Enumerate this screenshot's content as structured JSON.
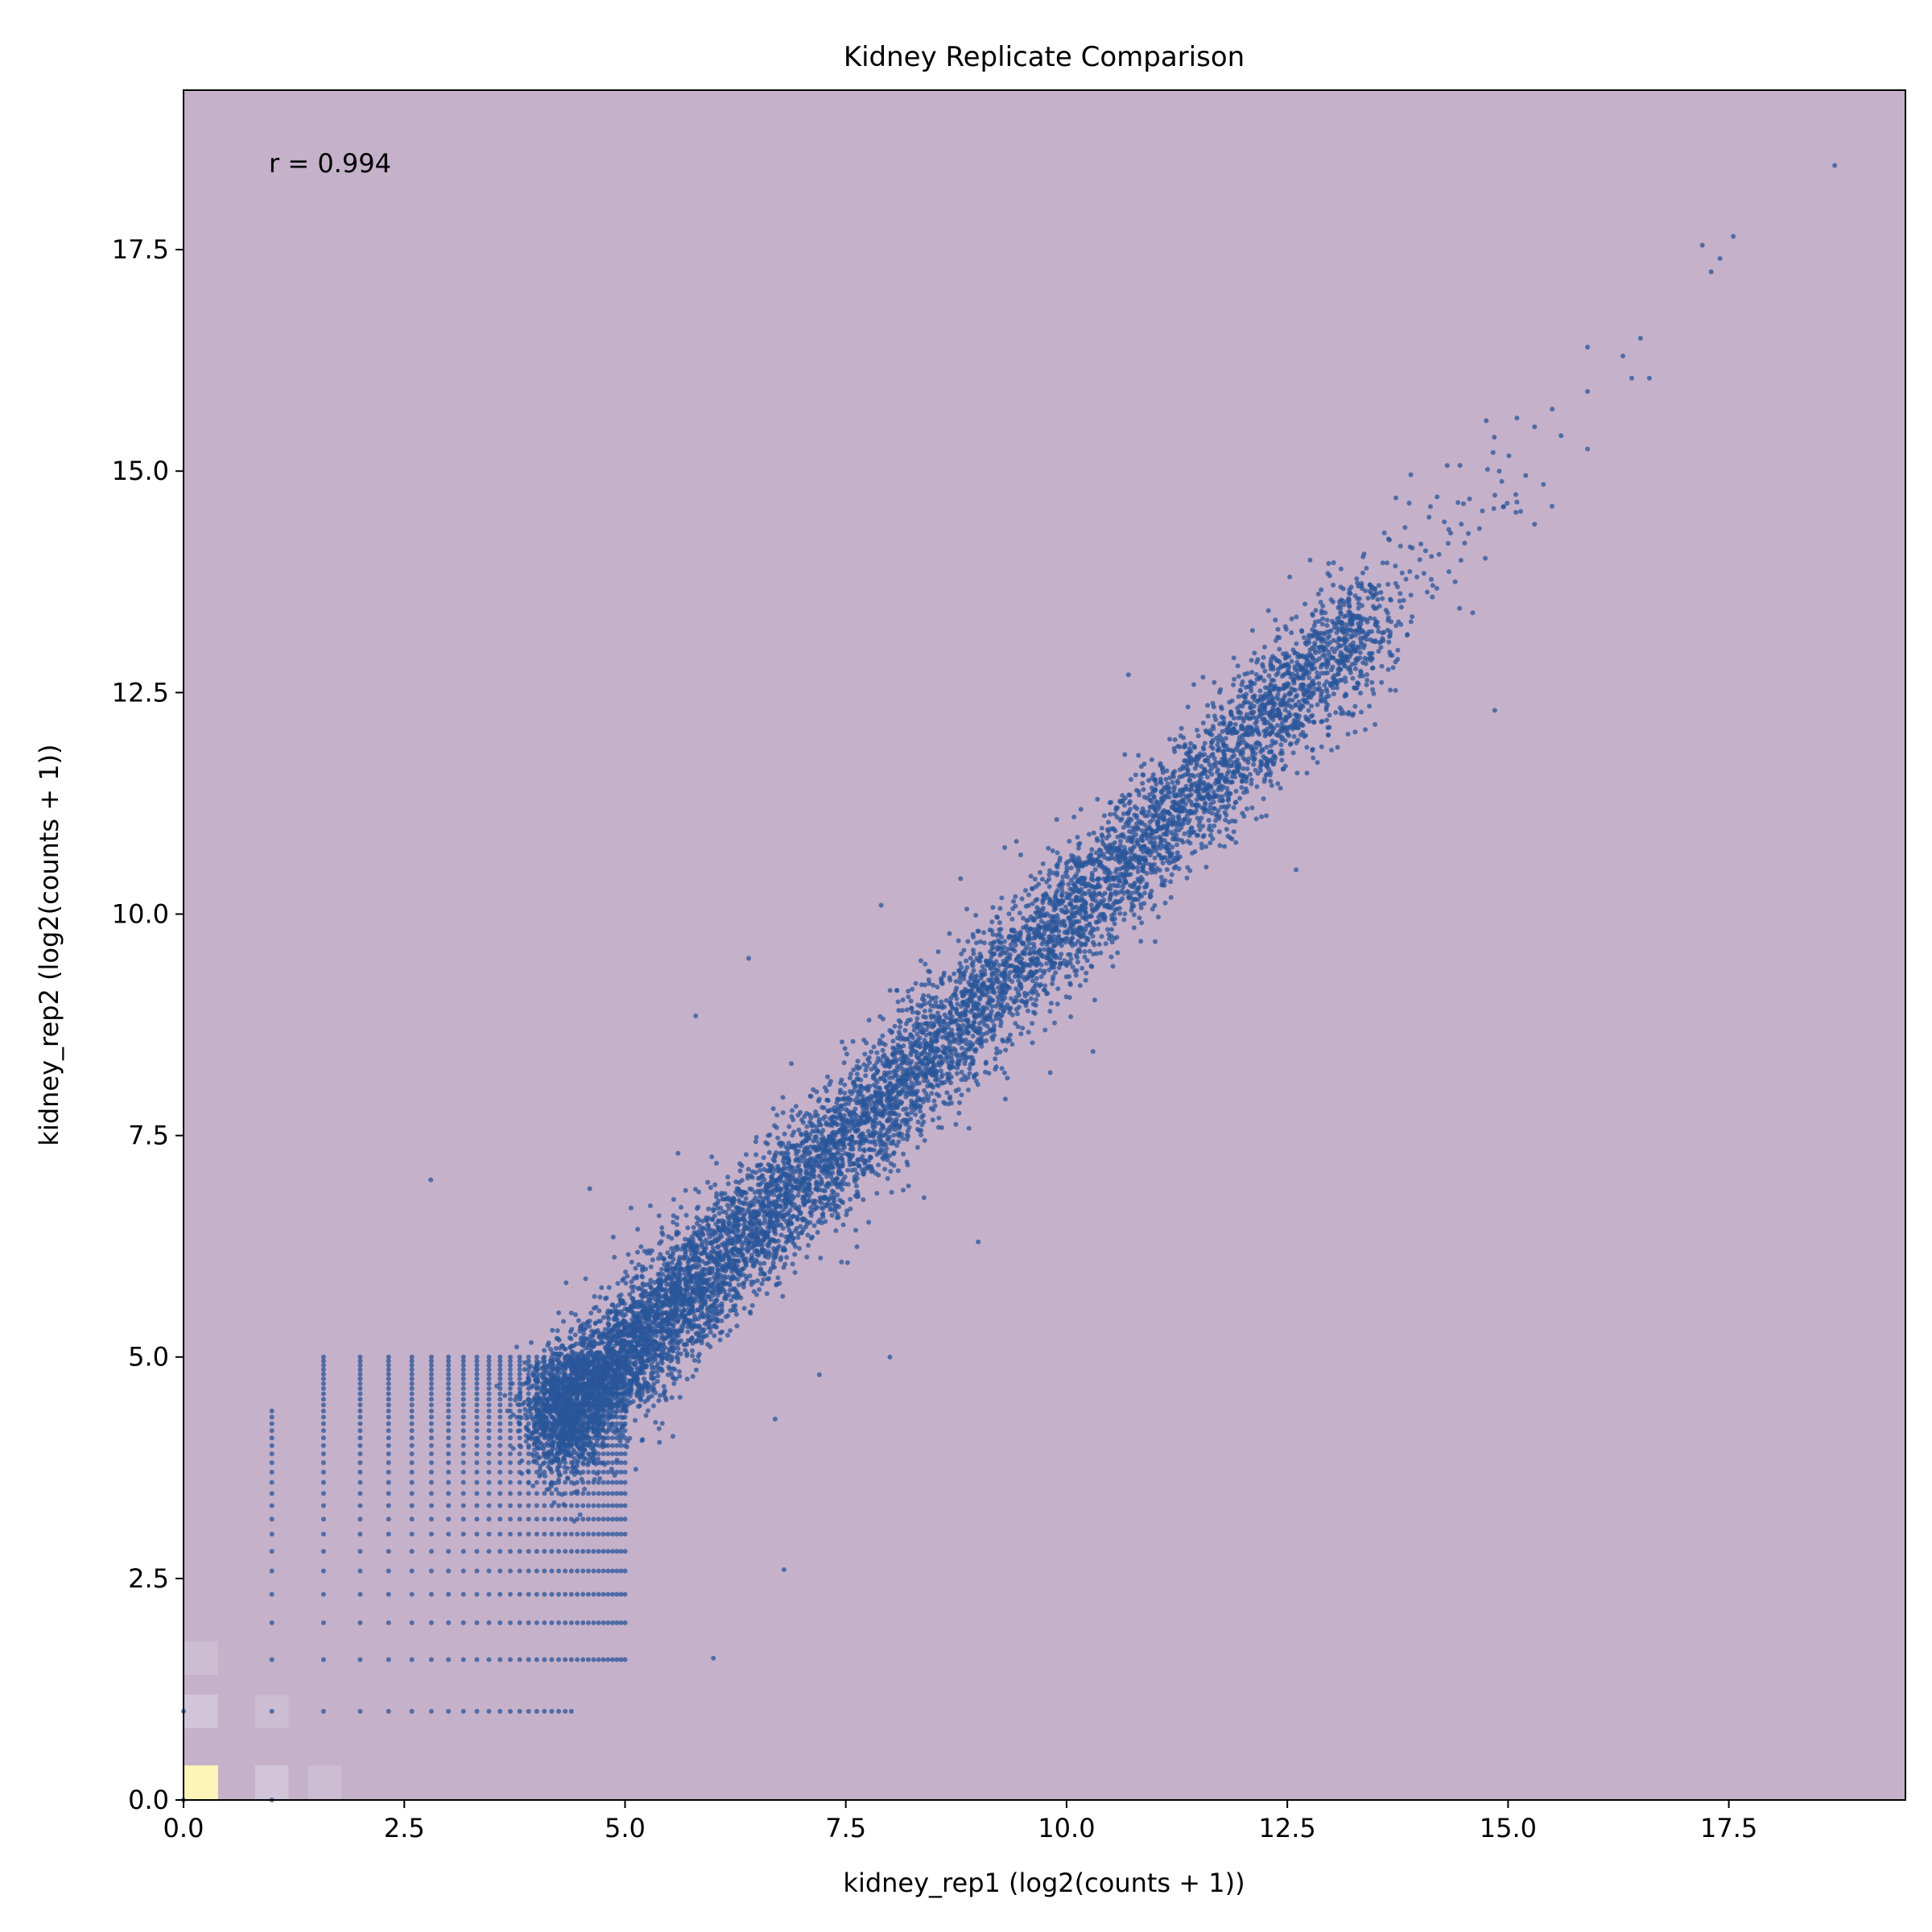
{
  "chart_data": {
    "type": "scatter",
    "title": "Kidney Replicate Comparison",
    "xlabel": "kidney_rep1 (log2(counts + 1))",
    "ylabel": "kidney_rep2 (log2(counts + 1))",
    "xlim": [
      0,
      19.5
    ],
    "ylim": [
      0,
      19.3
    ],
    "xticks": [
      "0.0",
      "2.5",
      "5.0",
      "7.5",
      "10.0",
      "12.5",
      "15.0",
      "17.5"
    ],
    "yticks": [
      "0.0",
      "2.5",
      "5.0",
      "7.5",
      "10.0",
      "12.5",
      "15.0",
      "17.5"
    ],
    "xtick_values": [
      0,
      2.5,
      5,
      7.5,
      10,
      12.5,
      15,
      17.5
    ],
    "ytick_values": [
      0,
      2.5,
      5,
      7.5,
      10,
      12.5,
      15,
      17.5
    ],
    "annotation": "r = 0.994",
    "grid": false,
    "legend": "none",
    "colors": {
      "background": "#c5b1ca",
      "points": "#2a5599",
      "density_high": "#fdf5b8",
      "density_mid": "#d2c5d8"
    },
    "density_cells": [
      {
        "x": 0.2,
        "y": 0.2,
        "level": "high"
      },
      {
        "x": 1.0,
        "y": 0.2,
        "level": "mid"
      },
      {
        "x": 0.2,
        "y": 1.0,
        "level": "mid"
      },
      {
        "x": 1.0,
        "y": 1.0,
        "level": "low"
      },
      {
        "x": 0.2,
        "y": 1.6,
        "level": "low"
      },
      {
        "x": 1.6,
        "y": 0.2,
        "level": "low"
      }
    ],
    "integer_count_levels": [
      0,
      1,
      1.585,
      2,
      2.322,
      2.585,
      2.807,
      3,
      3.17,
      3.322,
      3.459,
      3.585,
      3.7,
      3.807,
      3.907,
      4,
      4.087,
      4.17,
      4.248,
      4.322,
      4.392,
      4.459,
      4.524,
      4.585,
      4.644,
      4.7,
      4.755,
      4.807,
      4.858,
      4.907,
      4.954,
      5
    ],
    "main_cloud": {
      "x_range": [
        4.2,
        13.5
      ],
      "slope": 1.0,
      "spread": 0.35,
      "approx_points": 9000
    },
    "outliers": [
      {
        "x": 18.7,
        "y": 18.45
      },
      {
        "x": 17.55,
        "y": 17.65
      },
      {
        "x": 17.2,
        "y": 17.55
      },
      {
        "x": 17.4,
        "y": 17.4
      },
      {
        "x": 17.3,
        "y": 17.25
      },
      {
        "x": 16.5,
        "y": 16.5
      },
      {
        "x": 16.3,
        "y": 16.3
      },
      {
        "x": 16.6,
        "y": 16.05
      },
      {
        "x": 16.4,
        "y": 16.05
      },
      {
        "x": 15.9,
        "y": 16.4
      },
      {
        "x": 15.9,
        "y": 15.9
      },
      {
        "x": 15.5,
        "y": 15.7
      },
      {
        "x": 15.3,
        "y": 15.5
      },
      {
        "x": 15.6,
        "y": 15.4
      },
      {
        "x": 15.1,
        "y": 15.6
      },
      {
        "x": 15.9,
        "y": 15.25
      },
      {
        "x": 14.9,
        "y": 15.0
      },
      {
        "x": 15.2,
        "y": 14.95
      },
      {
        "x": 15.4,
        "y": 14.85
      },
      {
        "x": 15.1,
        "y": 14.65
      },
      {
        "x": 14.95,
        "y": 14.6
      },
      {
        "x": 15.3,
        "y": 14.4
      },
      {
        "x": 14.35,
        "y": 14.3
      },
      {
        "x": 14.0,
        "y": 14.0
      },
      {
        "x": 14.4,
        "y": 13.75
      },
      {
        "x": 14.6,
        "y": 13.4
      },
      {
        "x": 14.45,
        "y": 13.45
      },
      {
        "x": 14.85,
        "y": 12.3
      },
      {
        "x": 13.9,
        "y": 13.6
      },
      {
        "x": 13.8,
        "y": 13.85
      },
      {
        "x": 10.7,
        "y": 12.7
      },
      {
        "x": 12.7,
        "y": 13.5
      },
      {
        "x": 12.5,
        "y": 12.6
      },
      {
        "x": 13.0,
        "y": 11.85
      },
      {
        "x": 12.6,
        "y": 10.5
      },
      {
        "x": 11.4,
        "y": 10.8
      },
      {
        "x": 9.3,
        "y": 10.75
      },
      {
        "x": 8.8,
        "y": 10.4
      },
      {
        "x": 7.9,
        "y": 10.1
      },
      {
        "x": 6.4,
        "y": 9.5
      },
      {
        "x": 5.8,
        "y": 8.85
      },
      {
        "x": 10.3,
        "y": 8.45
      },
      {
        "x": 2.8,
        "y": 7.0
      },
      {
        "x": 9.0,
        "y": 6.3
      },
      {
        "x": 8.0,
        "y": 5.0
      },
      {
        "x": 6.8,
        "y": 2.6
      },
      {
        "x": 6.0,
        "y": 1.6
      },
      {
        "x": 4.6,
        "y": 6.9
      },
      {
        "x": 5.6,
        "y": 7.3
      },
      {
        "x": 7.2,
        "y": 4.8
      },
      {
        "x": 6.7,
        "y": 4.3
      }
    ]
  }
}
